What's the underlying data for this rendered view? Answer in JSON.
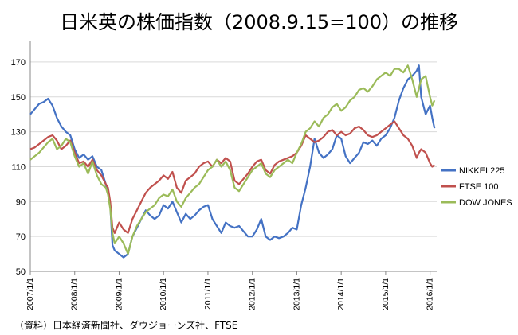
{
  "chart_data": {
    "type": "line",
    "title": "日米英の株価指数（2008.9.15=100）の推移",
    "source": "（資料）日本経済新聞社、ダウジョーンズ社、FTSE",
    "xlabel": "",
    "ylabel": "",
    "ylim": [
      50,
      180
    ],
    "yticks": [
      50,
      70,
      90,
      110,
      130,
      150,
      170
    ],
    "x_range": [
      2007.0,
      2016.15
    ],
    "x_ticks": [
      {
        "value": 2007,
        "label": "2007/1/1"
      },
      {
        "value": 2008,
        "label": "2008/1/1"
      },
      {
        "value": 2009,
        "label": "2009/1/1"
      },
      {
        "value": 2010,
        "label": "2010/1/1"
      },
      {
        "value": 2011,
        "label": "2011/1/1"
      },
      {
        "value": 2012,
        "label": "2012/1/1"
      },
      {
        "value": 2013,
        "label": "2013/1/1"
      },
      {
        "value": 2014,
        "label": "2014/1/1"
      },
      {
        "value": 2015,
        "label": "2015/1/1"
      },
      {
        "value": 2016,
        "label": "2016/1/1"
      }
    ],
    "grid": "horizontal",
    "legend_position": "right",
    "series": [
      {
        "name": "NIKKEI 225",
        "color": "#4472c4",
        "x": [
          2007.0,
          2007.1,
          2007.2,
          2007.3,
          2007.4,
          2007.5,
          2007.6,
          2007.7,
          2007.8,
          2007.9,
          2008.0,
          2008.1,
          2008.2,
          2008.3,
          2008.4,
          2008.5,
          2008.6,
          2008.7,
          2008.75,
          2008.8,
          2008.85,
          2008.9,
          2009.0,
          2009.1,
          2009.2,
          2009.3,
          2009.4,
          2009.5,
          2009.6,
          2009.7,
          2009.8,
          2009.9,
          2010.0,
          2010.1,
          2010.2,
          2010.3,
          2010.4,
          2010.5,
          2010.6,
          2010.7,
          2010.8,
          2010.9,
          2011.0,
          2011.1,
          2011.2,
          2011.3,
          2011.4,
          2011.5,
          2011.6,
          2011.7,
          2011.8,
          2011.9,
          2012.0,
          2012.1,
          2012.2,
          2012.3,
          2012.4,
          2012.5,
          2012.6,
          2012.7,
          2012.8,
          2012.9,
          2013.0,
          2013.1,
          2013.2,
          2013.3,
          2013.4,
          2013.5,
          2013.6,
          2013.7,
          2013.8,
          2013.9,
          2014.0,
          2014.1,
          2014.2,
          2014.3,
          2014.4,
          2014.5,
          2014.6,
          2014.7,
          2014.8,
          2014.9,
          2015.0,
          2015.1,
          2015.2,
          2015.3,
          2015.4,
          2015.5,
          2015.6,
          2015.7,
          2015.75,
          2015.8,
          2015.9,
          2016.0,
          2016.05,
          2016.1
        ],
        "values": [
          140,
          143,
          146,
          147,
          149,
          145,
          138,
          133,
          130,
          128,
          120,
          115,
          117,
          114,
          116,
          110,
          108,
          100,
          95,
          88,
          65,
          62,
          60,
          58,
          60,
          70,
          75,
          80,
          85,
          82,
          80,
          82,
          88,
          86,
          90,
          84,
          78,
          83,
          80,
          82,
          85,
          87,
          88,
          80,
          76,
          72,
          78,
          76,
          75,
          76,
          73,
          70,
          70,
          74,
          80,
          70,
          68,
          70,
          69,
          70,
          72,
          75,
          74,
          88,
          98,
          110,
          126,
          118,
          115,
          117,
          120,
          128,
          126,
          116,
          112,
          115,
          118,
          124,
          123,
          125,
          122,
          126,
          128,
          132,
          138,
          148,
          155,
          160,
          162,
          165,
          168,
          150,
          140,
          145,
          138,
          132
        ]
      },
      {
        "name": "FTSE 100",
        "color": "#c0504d",
        "x": [
          2007.0,
          2007.1,
          2007.2,
          2007.3,
          2007.4,
          2007.5,
          2007.6,
          2007.7,
          2007.8,
          2007.9,
          2008.0,
          2008.1,
          2008.2,
          2008.3,
          2008.4,
          2008.5,
          2008.6,
          2008.7,
          2008.75,
          2008.8,
          2008.85,
          2008.9,
          2009.0,
          2009.1,
          2009.2,
          2009.3,
          2009.4,
          2009.5,
          2009.6,
          2009.7,
          2009.8,
          2009.9,
          2010.0,
          2010.1,
          2010.2,
          2010.3,
          2010.4,
          2010.5,
          2010.6,
          2010.7,
          2010.8,
          2010.9,
          2011.0,
          2011.1,
          2011.2,
          2011.3,
          2011.4,
          2011.5,
          2011.6,
          2011.7,
          2011.8,
          2011.9,
          2012.0,
          2012.1,
          2012.2,
          2012.3,
          2012.4,
          2012.5,
          2012.6,
          2012.7,
          2012.8,
          2012.9,
          2013.0,
          2013.1,
          2013.2,
          2013.3,
          2013.4,
          2013.5,
          2013.6,
          2013.7,
          2013.8,
          2013.9,
          2014.0,
          2014.1,
          2014.2,
          2014.3,
          2014.4,
          2014.5,
          2014.6,
          2014.7,
          2014.8,
          2014.9,
          2015.0,
          2015.1,
          2015.2,
          2015.3,
          2015.4,
          2015.5,
          2015.6,
          2015.7,
          2015.75,
          2015.8,
          2015.9,
          2016.0,
          2016.05,
          2016.1
        ],
        "values": [
          120,
          121,
          123,
          125,
          127,
          128,
          125,
          120,
          122,
          125,
          118,
          112,
          113,
          110,
          114,
          108,
          105,
          100,
          98,
          90,
          75,
          72,
          78,
          74,
          72,
          80,
          85,
          90,
          95,
          98,
          100,
          102,
          105,
          103,
          107,
          98,
          95,
          102,
          104,
          106,
          110,
          112,
          113,
          110,
          114,
          112,
          115,
          113,
          102,
          100,
          103,
          106,
          110,
          113,
          114,
          108,
          106,
          111,
          113,
          114,
          115,
          116,
          118,
          122,
          128,
          126,
          124,
          125,
          127,
          130,
          131,
          128,
          130,
          128,
          129,
          132,
          133,
          131,
          128,
          127,
          128,
          130,
          132,
          134,
          136,
          132,
          128,
          126,
          122,
          115,
          118,
          120,
          118,
          112,
          110,
          111
        ]
      },
      {
        "name": "DOW JONES",
        "color": "#9bbb59",
        "x": [
          2007.0,
          2007.1,
          2007.2,
          2007.3,
          2007.4,
          2007.5,
          2007.6,
          2007.7,
          2007.8,
          2007.9,
          2008.0,
          2008.1,
          2008.2,
          2008.3,
          2008.4,
          2008.5,
          2008.6,
          2008.7,
          2008.75,
          2008.8,
          2008.85,
          2008.9,
          2009.0,
          2009.1,
          2009.2,
          2009.3,
          2009.4,
          2009.5,
          2009.6,
          2009.7,
          2009.8,
          2009.9,
          2010.0,
          2010.1,
          2010.2,
          2010.3,
          2010.4,
          2010.5,
          2010.6,
          2010.7,
          2010.8,
          2010.9,
          2011.0,
          2011.1,
          2011.2,
          2011.3,
          2011.4,
          2011.5,
          2011.6,
          2011.7,
          2011.8,
          2011.9,
          2012.0,
          2012.1,
          2012.2,
          2012.3,
          2012.4,
          2012.5,
          2012.6,
          2012.7,
          2012.8,
          2012.9,
          2013.0,
          2013.1,
          2013.2,
          2013.3,
          2013.4,
          2013.5,
          2013.6,
          2013.7,
          2013.8,
          2013.9,
          2014.0,
          2014.1,
          2014.2,
          2014.3,
          2014.4,
          2014.5,
          2014.6,
          2014.7,
          2014.8,
          2014.9,
          2015.0,
          2015.1,
          2015.2,
          2015.3,
          2015.4,
          2015.5,
          2015.6,
          2015.7,
          2015.75,
          2015.8,
          2015.9,
          2016.0,
          2016.05,
          2016.1
        ],
        "values": [
          114,
          116,
          118,
          121,
          124,
          126,
          120,
          122,
          126,
          124,
          116,
          110,
          112,
          106,
          113,
          105,
          100,
          98,
          94,
          86,
          72,
          66,
          70,
          66,
          60,
          70,
          76,
          80,
          84,
          86,
          88,
          92,
          94,
          93,
          97,
          90,
          87,
          92,
          95,
          98,
          100,
          104,
          108,
          110,
          114,
          110,
          113,
          108,
          98,
          96,
          100,
          104,
          108,
          110,
          112,
          106,
          104,
          108,
          110,
          112,
          114,
          112,
          118,
          123,
          130,
          132,
          136,
          133,
          138,
          140,
          144,
          146,
          142,
          144,
          148,
          150,
          154,
          155,
          153,
          156,
          160,
          162,
          164,
          162,
          166,
          166,
          164,
          168,
          160,
          150,
          155,
          160,
          162,
          150,
          145,
          148
        ]
      }
    ]
  }
}
